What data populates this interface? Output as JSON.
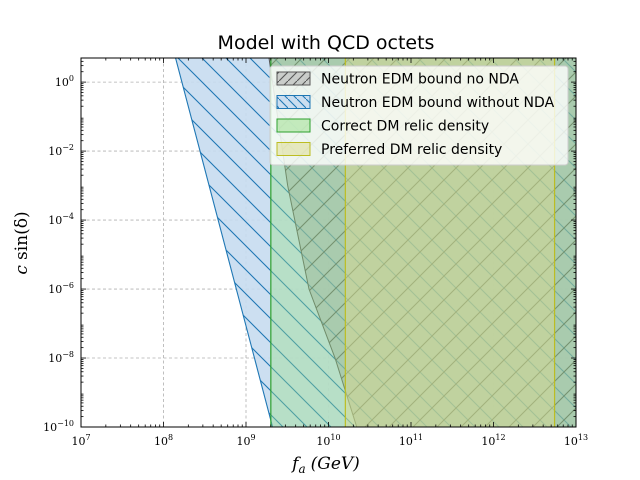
{
  "chart_data": {
    "type": "area",
    "title": "Model with QCD octets",
    "xlabel_main": "f",
    "xlabel_sub": "a",
    "xlabel_unit": "(GeV)",
    "ylabel_main": "c",
    "ylabel_func": "sin(δ)",
    "xscale": "log",
    "yscale": "log",
    "xlim": [
      10000000.0,
      10000000000000.0
    ],
    "ylim": [
      1e-10,
      5
    ],
    "x_ticks": [
      {
        "value": 10000000.0,
        "mant": "10",
        "exp": "7"
      },
      {
        "value": 100000000.0,
        "mant": "10",
        "exp": "8"
      },
      {
        "value": 1000000000.0,
        "mant": "10",
        "exp": "9"
      },
      {
        "value": 10000000000.0,
        "mant": "10",
        "exp": "10"
      },
      {
        "value": 100000000000.0,
        "mant": "10",
        "exp": "11"
      },
      {
        "value": 1000000000000.0,
        "mant": "10",
        "exp": "12"
      },
      {
        "value": 10000000000000.0,
        "mant": "10",
        "exp": "13"
      }
    ],
    "y_ticks": [
      {
        "value": 1e-10,
        "mant": "10",
        "exp": "−10"
      },
      {
        "value": 1e-08,
        "mant": "10",
        "exp": "−8"
      },
      {
        "value": 1e-06,
        "mant": "10",
        "exp": "−6"
      },
      {
        "value": 0.0001,
        "mant": "10",
        "exp": "−4"
      },
      {
        "value": 0.01,
        "mant": "10",
        "exp": "−2"
      },
      {
        "value": 1,
        "mant": "10",
        "exp": "0"
      }
    ],
    "grid": true,
    "legend_position": "top-right",
    "series": [
      {
        "name": "Neutron EDM bound without NDA",
        "fill": "#c6dbef",
        "edge": "#1f77b4",
        "hatch": "\\",
        "boundary": [
          [
            140000000.0,
            5
          ],
          [
            2100000000.0,
            1e-10
          ]
        ],
        "upper": 10000000000000.0
      },
      {
        "name": "Neutron EDM bound no NDA",
        "fill": "#9e9e9e",
        "edge": "#555555",
        "hatch": "/",
        "boundary": [
          [
            1900000000.0,
            5
          ],
          [
            3200000000.0,
            0.001
          ],
          [
            5800000000.0,
            1e-06
          ],
          [
            12000000000.0,
            1e-08
          ],
          [
            22000000000.0,
            1e-10
          ]
        ],
        "upper": 10000000000000.0
      },
      {
        "name": "Correct DM relic density",
        "fill": "#98df8a",
        "edge": "#2ca02c",
        "x_range": [
          2000000000.0,
          10000000000000.0
        ]
      },
      {
        "name": "Preferred DM relic density",
        "fill": "#dbdb8d",
        "edge": "#bcbd22",
        "x_range": [
          16000000000.0,
          5500000000000.0
        ]
      }
    ],
    "legend_order": [
      "Neutron EDM bound no NDA",
      "Neutron EDM bound without NDA",
      "Correct DM relic density",
      "Preferred DM relic density"
    ]
  }
}
